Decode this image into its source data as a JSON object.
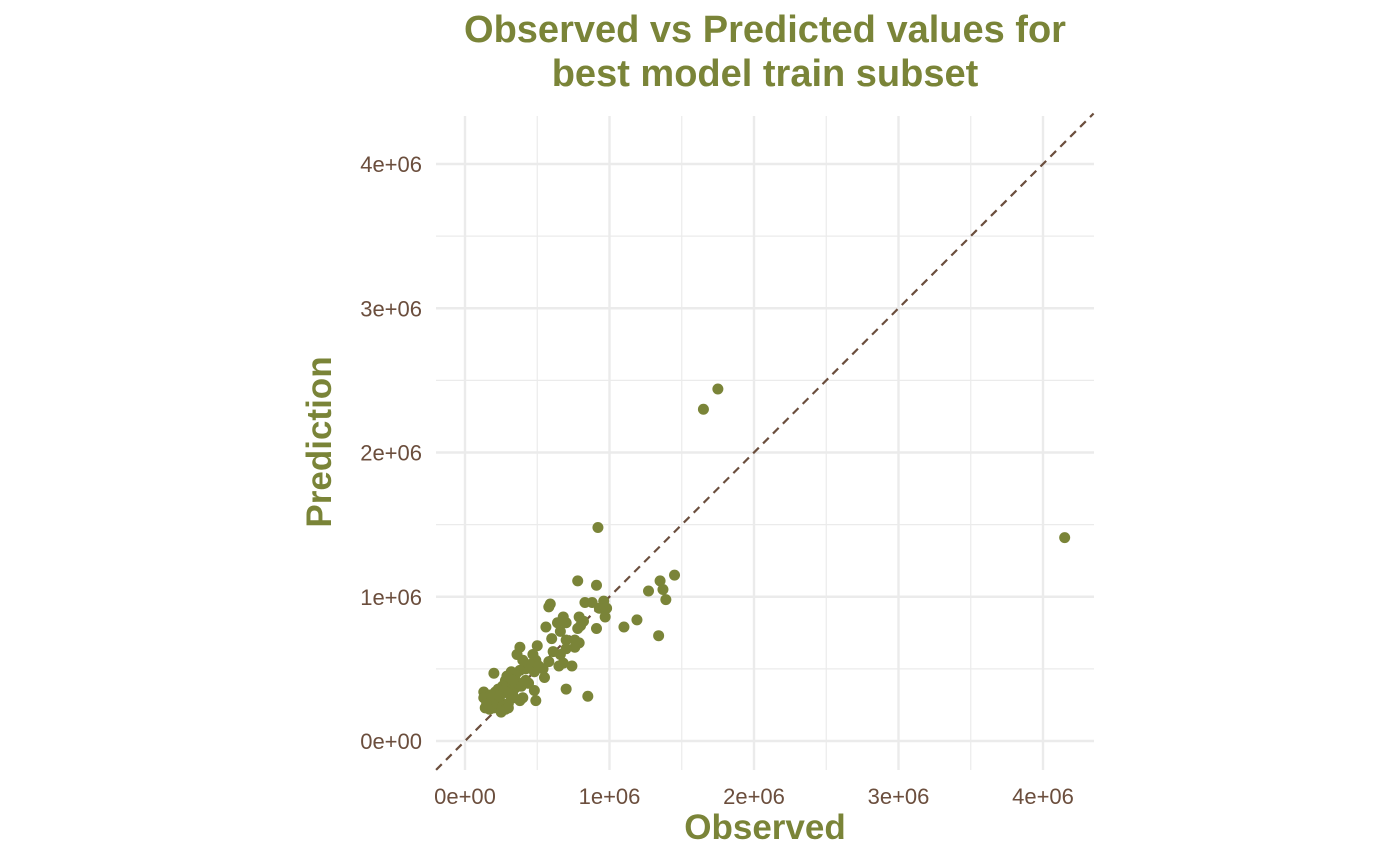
{
  "colors": {
    "accent": "#7a8438",
    "tick_text": "#6b4e3d",
    "ref_line": "#6b4e3d",
    "grid": "#ebebeb"
  },
  "chart_data": {
    "type": "scatter",
    "title": "Observed vs Predicted values for\nbest model train subset",
    "title_lines": [
      "Observed vs Predicted values for",
      "best model train subset"
    ],
    "xlabel": "Observed",
    "ylabel": "Prediction",
    "xlim": [
      -200000,
      4350000
    ],
    "ylim": [
      -200000,
      4350000
    ],
    "x_ticks": [
      0,
      1000000,
      2000000,
      3000000,
      4000000
    ],
    "x_tick_labels": [
      "0e+00",
      "1e+06",
      "2e+06",
      "3e+06",
      "4e+06"
    ],
    "y_ticks": [
      0,
      1000000,
      2000000,
      3000000,
      4000000
    ],
    "y_tick_labels": [
      "0e+00",
      "1e+06",
      "2e+06",
      "3e+06",
      "4e+06"
    ],
    "grid": true,
    "reference_line": "y = x (dashed)",
    "points": [
      [
        4150000,
        1410000
      ],
      [
        1750000,
        2440000
      ],
      [
        1650000,
        2300000
      ],
      [
        920000,
        1480000
      ],
      [
        1450000,
        1150000
      ],
      [
        1350000,
        1110000
      ],
      [
        1370000,
        1050000
      ],
      [
        1390000,
        980000
      ],
      [
        1270000,
        1040000
      ],
      [
        1340000,
        730000
      ],
      [
        1190000,
        840000
      ],
      [
        1100000,
        790000
      ],
      [
        780000,
        1110000
      ],
      [
        910000,
        1080000
      ],
      [
        960000,
        970000
      ],
      [
        980000,
        920000
      ],
      [
        970000,
        860000
      ],
      [
        930000,
        920000
      ],
      [
        880000,
        960000
      ],
      [
        830000,
        960000
      ],
      [
        790000,
        860000
      ],
      [
        820000,
        830000
      ],
      [
        800000,
        800000
      ],
      [
        780000,
        780000
      ],
      [
        910000,
        780000
      ],
      [
        700000,
        820000
      ],
      [
        680000,
        860000
      ],
      [
        640000,
        820000
      ],
      [
        590000,
        950000
      ],
      [
        580000,
        930000
      ],
      [
        600000,
        710000
      ],
      [
        660000,
        760000
      ],
      [
        700000,
        700000
      ],
      [
        760000,
        700000
      ],
      [
        790000,
        680000
      ],
      [
        760000,
        650000
      ],
      [
        700000,
        640000
      ],
      [
        660000,
        600000
      ],
      [
        610000,
        620000
      ],
      [
        580000,
        550000
      ],
      [
        650000,
        520000
      ],
      [
        680000,
        540000
      ],
      [
        740000,
        520000
      ],
      [
        700000,
        360000
      ],
      [
        850000,
        310000
      ],
      [
        550000,
        440000
      ],
      [
        560000,
        790000
      ],
      [
        500000,
        660000
      ],
      [
        490000,
        560000
      ],
      [
        470000,
        600000
      ],
      [
        450000,
        530000
      ],
      [
        480000,
        480000
      ],
      [
        420000,
        500000
      ],
      [
        380000,
        650000
      ],
      [
        360000,
        600000
      ],
      [
        400000,
        560000
      ],
      [
        380000,
        490000
      ],
      [
        350000,
        460000
      ],
      [
        320000,
        480000
      ],
      [
        310000,
        430000
      ],
      [
        300000,
        400000
      ],
      [
        280000,
        420000
      ],
      [
        260000,
        380000
      ],
      [
        250000,
        330000
      ],
      [
        230000,
        360000
      ],
      [
        210000,
        340000
      ],
      [
        200000,
        470000
      ],
      [
        190000,
        300000
      ],
      [
        180000,
        280000
      ],
      [
        160000,
        250000
      ],
      [
        140000,
        230000
      ],
      [
        130000,
        340000
      ],
      [
        130000,
        300000
      ],
      [
        150000,
        260000
      ],
      [
        170000,
        220000
      ],
      [
        200000,
        230000
      ],
      [
        220000,
        260000
      ],
      [
        240000,
        280000
      ],
      [
        260000,
        240000
      ],
      [
        280000,
        220000
      ],
      [
        300000,
        260000
      ],
      [
        320000,
        310000
      ],
      [
        330000,
        340000
      ],
      [
        350000,
        370000
      ],
      [
        370000,
        400000
      ],
      [
        390000,
        380000
      ],
      [
        400000,
        300000
      ],
      [
        380000,
        280000
      ],
      [
        340000,
        300000
      ],
      [
        300000,
        330000
      ],
      [
        270000,
        350000
      ],
      [
        290000,
        450000
      ],
      [
        330000,
        420000
      ],
      [
        420000,
        420000
      ],
      [
        440000,
        400000
      ],
      [
        480000,
        350000
      ],
      [
        490000,
        280000
      ],
      [
        540000,
        500000
      ],
      [
        510000,
        520000
      ],
      [
        300000,
        230000
      ],
      [
        250000,
        200000
      ],
      [
        210000,
        300000
      ],
      [
        180000,
        320000
      ],
      [
        240000,
        310000
      ]
    ]
  }
}
